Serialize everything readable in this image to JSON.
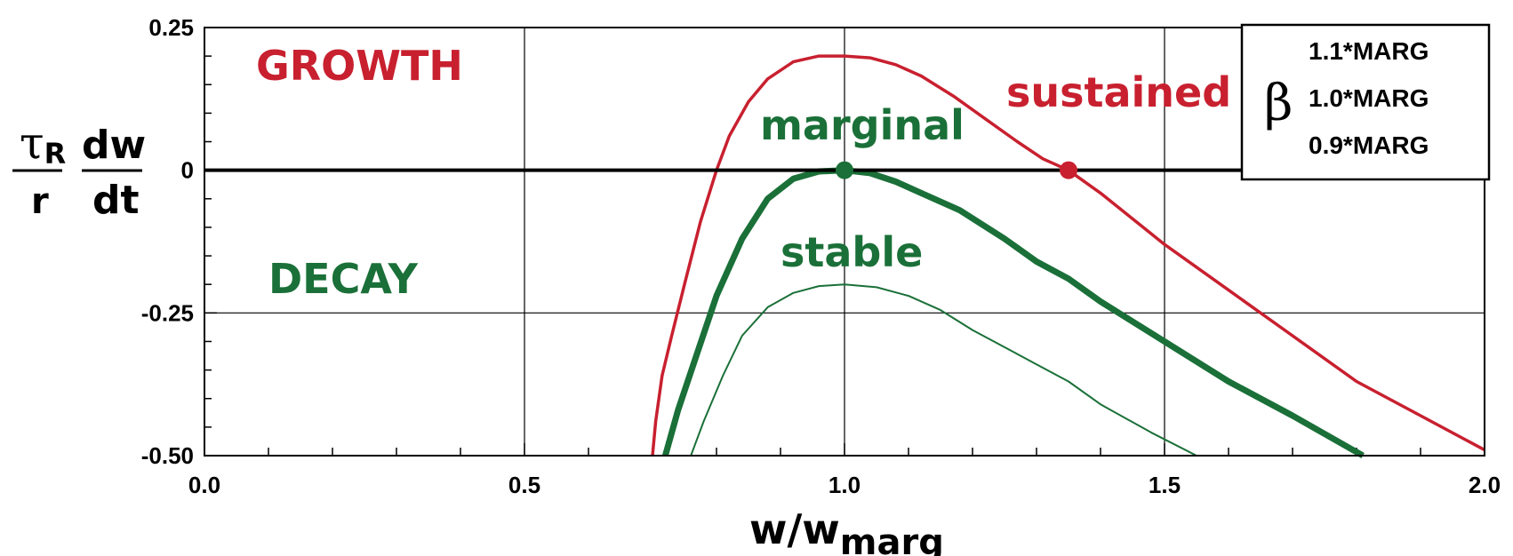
{
  "colors": {
    "growth": "#c8202f",
    "decay": "#1a7038",
    "axis": "#000000",
    "grid": "#000000"
  },
  "chart_data": {
    "type": "line",
    "xlabel": {
      "main": "w/w",
      "sub": "marg"
    },
    "ylabel": {
      "tau": "τ",
      "tau_sub": "R",
      "denominator": "r",
      "dw": "dw",
      "dt": "dt"
    },
    "xlim": [
      0.0,
      2.0
    ],
    "ylim": [
      -0.5,
      0.25
    ],
    "x_ticks": [
      0.0,
      0.5,
      1.0,
      1.5,
      2.0
    ],
    "x_tick_labels": [
      "0.0",
      "0.5",
      "1.0",
      "1.5",
      "2.0"
    ],
    "y_ticks": [
      0.25,
      0,
      -0.25,
      -0.5
    ],
    "y_tick_labels": [
      "0.25",
      "0",
      "-0.25",
      "-0.50"
    ],
    "grid": true,
    "legend": {
      "position": "top-right",
      "symbol": "β",
      "entries": [
        "1.1*MARG",
        "1.0*MARG",
        "0.9*MARG"
      ]
    },
    "annotations": {
      "growth": "GROWTH",
      "decay": "DECAY",
      "sustained": "sustained",
      "marginal": "marginal",
      "stable": "stable"
    },
    "series": [
      {
        "name": "1.1*MARG",
        "color": "#c8202f",
        "width": "medium",
        "x": [
          0.7,
          0.705,
          0.715,
          0.73,
          0.75,
          0.775,
          0.8,
          0.82,
          0.85,
          0.88,
          0.92,
          0.96,
          1.0,
          1.04,
          1.08,
          1.12,
          1.17,
          1.22,
          1.27,
          1.31,
          1.35,
          1.4,
          1.5,
          1.6,
          1.7,
          1.8,
          1.9,
          2.0
        ],
        "y": [
          -0.5,
          -0.44,
          -0.36,
          -0.29,
          -0.2,
          -0.09,
          0.0,
          0.06,
          0.12,
          0.16,
          0.19,
          0.2,
          0.2,
          0.197,
          0.185,
          0.165,
          0.13,
          0.09,
          0.05,
          0.02,
          0.0,
          -0.04,
          -0.13,
          -0.21,
          -0.29,
          -0.37,
          -0.43,
          -0.49
        ]
      },
      {
        "name": "1.0*MARG",
        "color": "#1a7038",
        "width": "thick",
        "x": [
          0.72,
          0.74,
          0.77,
          0.8,
          0.84,
          0.88,
          0.92,
          0.96,
          1.0,
          1.04,
          1.08,
          1.12,
          1.18,
          1.25,
          1.3,
          1.35,
          1.4,
          1.5,
          1.6,
          1.7,
          1.81
        ],
        "y": [
          -0.5,
          -0.42,
          -0.32,
          -0.22,
          -0.12,
          -0.05,
          -0.015,
          -0.002,
          0.0,
          -0.005,
          -0.02,
          -0.04,
          -0.07,
          -0.12,
          -0.16,
          -0.19,
          -0.23,
          -0.3,
          -0.37,
          -0.43,
          -0.5
        ]
      },
      {
        "name": "0.9*MARG",
        "color": "#1a7038",
        "width": "thin",
        "x": [
          0.76,
          0.78,
          0.81,
          0.84,
          0.88,
          0.92,
          0.96,
          1.0,
          1.05,
          1.1,
          1.15,
          1.2,
          1.25,
          1.3,
          1.35,
          1.4,
          1.48,
          1.55
        ],
        "y": [
          -0.5,
          -0.44,
          -0.36,
          -0.29,
          -0.24,
          -0.215,
          -0.203,
          -0.2,
          -0.205,
          -0.22,
          -0.245,
          -0.28,
          -0.31,
          -0.34,
          -0.37,
          -0.41,
          -0.46,
          -0.5
        ]
      }
    ],
    "points": [
      {
        "x": 1.0,
        "y": 0.0,
        "series": "1.0*MARG"
      },
      {
        "x": 1.35,
        "y": 0.0,
        "series": "1.1*MARG"
      }
    ]
  }
}
